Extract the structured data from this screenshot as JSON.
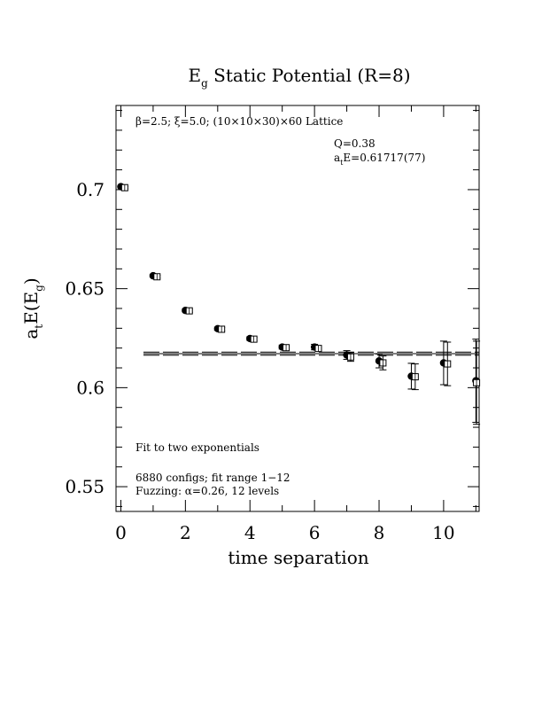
{
  "chart_data": {
    "type": "scatter",
    "title_main": "E",
    "title_sub": "g",
    "title_rest": " Static Potential (R=8)",
    "xlabel": "time separation",
    "ylabel_parts": {
      "a": "a",
      "t": "t",
      "mid": "E(E",
      "g": "g",
      "close": ")"
    },
    "xlim": [
      -0.15,
      11.1
    ],
    "ylim": [
      0.5375,
      0.7425
    ],
    "x_ticks": [
      0,
      2,
      4,
      6,
      8,
      10
    ],
    "x_tick_labels": [
      "0",
      "2",
      "4",
      "6",
      "8",
      "10"
    ],
    "y_ticks": [
      0.55,
      0.6,
      0.65,
      0.7
    ],
    "y_tick_labels": [
      "0.55",
      "0.6",
      "0.65",
      "0.7"
    ],
    "x_minor_step": 1,
    "y_minor_step": 0.01,
    "annotations": {
      "lattice": "β=2.5; ξ=5.0; (10×10×30)×60 Lattice",
      "q": "Q=0.38",
      "fit_a": "a",
      "fit_t": "t",
      "fit_rest": "E=0.61717(77)",
      "fit_type": "Fit to two exponentials",
      "configs": "6880 configs; fit range 1−12",
      "fuzzing": "Fuzzing: α=0.26, 12 levels"
    },
    "fit": {
      "value": 0.61717,
      "error": 0.00077,
      "x_range": [
        0.7,
        11.1
      ]
    },
    "series": [
      {
        "marker": "filled-circle",
        "x": [
          0,
          1,
          2,
          3,
          4,
          5,
          6,
          7,
          8,
          9,
          10,
          11
        ],
        "y": [
          0.7015,
          0.6565,
          0.639,
          0.6298,
          0.6248,
          0.6205,
          0.6205,
          0.6165,
          0.6135,
          0.6058,
          0.6125,
          0.6035
        ],
        "err": [
          0.0005,
          0.0007,
          0.0007,
          0.0008,
          0.0009,
          0.001,
          0.0014,
          0.0022,
          0.0035,
          0.0065,
          0.011,
          0.021
        ]
      },
      {
        "marker": "open-square",
        "x": [
          0.12,
          1.12,
          2.12,
          3.12,
          4.12,
          5.12,
          6.12,
          7.12,
          8.12,
          9.12,
          10.12,
          11.02
        ],
        "y": [
          0.701,
          0.656,
          0.6388,
          0.6295,
          0.6245,
          0.6202,
          0.6198,
          0.6155,
          0.6125,
          0.6055,
          0.612,
          0.6025
        ],
        "err": [
          0.0005,
          0.0007,
          0.0007,
          0.0008,
          0.0009,
          0.001,
          0.0014,
          0.0022,
          0.0035,
          0.0065,
          0.011,
          0.021
        ]
      }
    ]
  }
}
